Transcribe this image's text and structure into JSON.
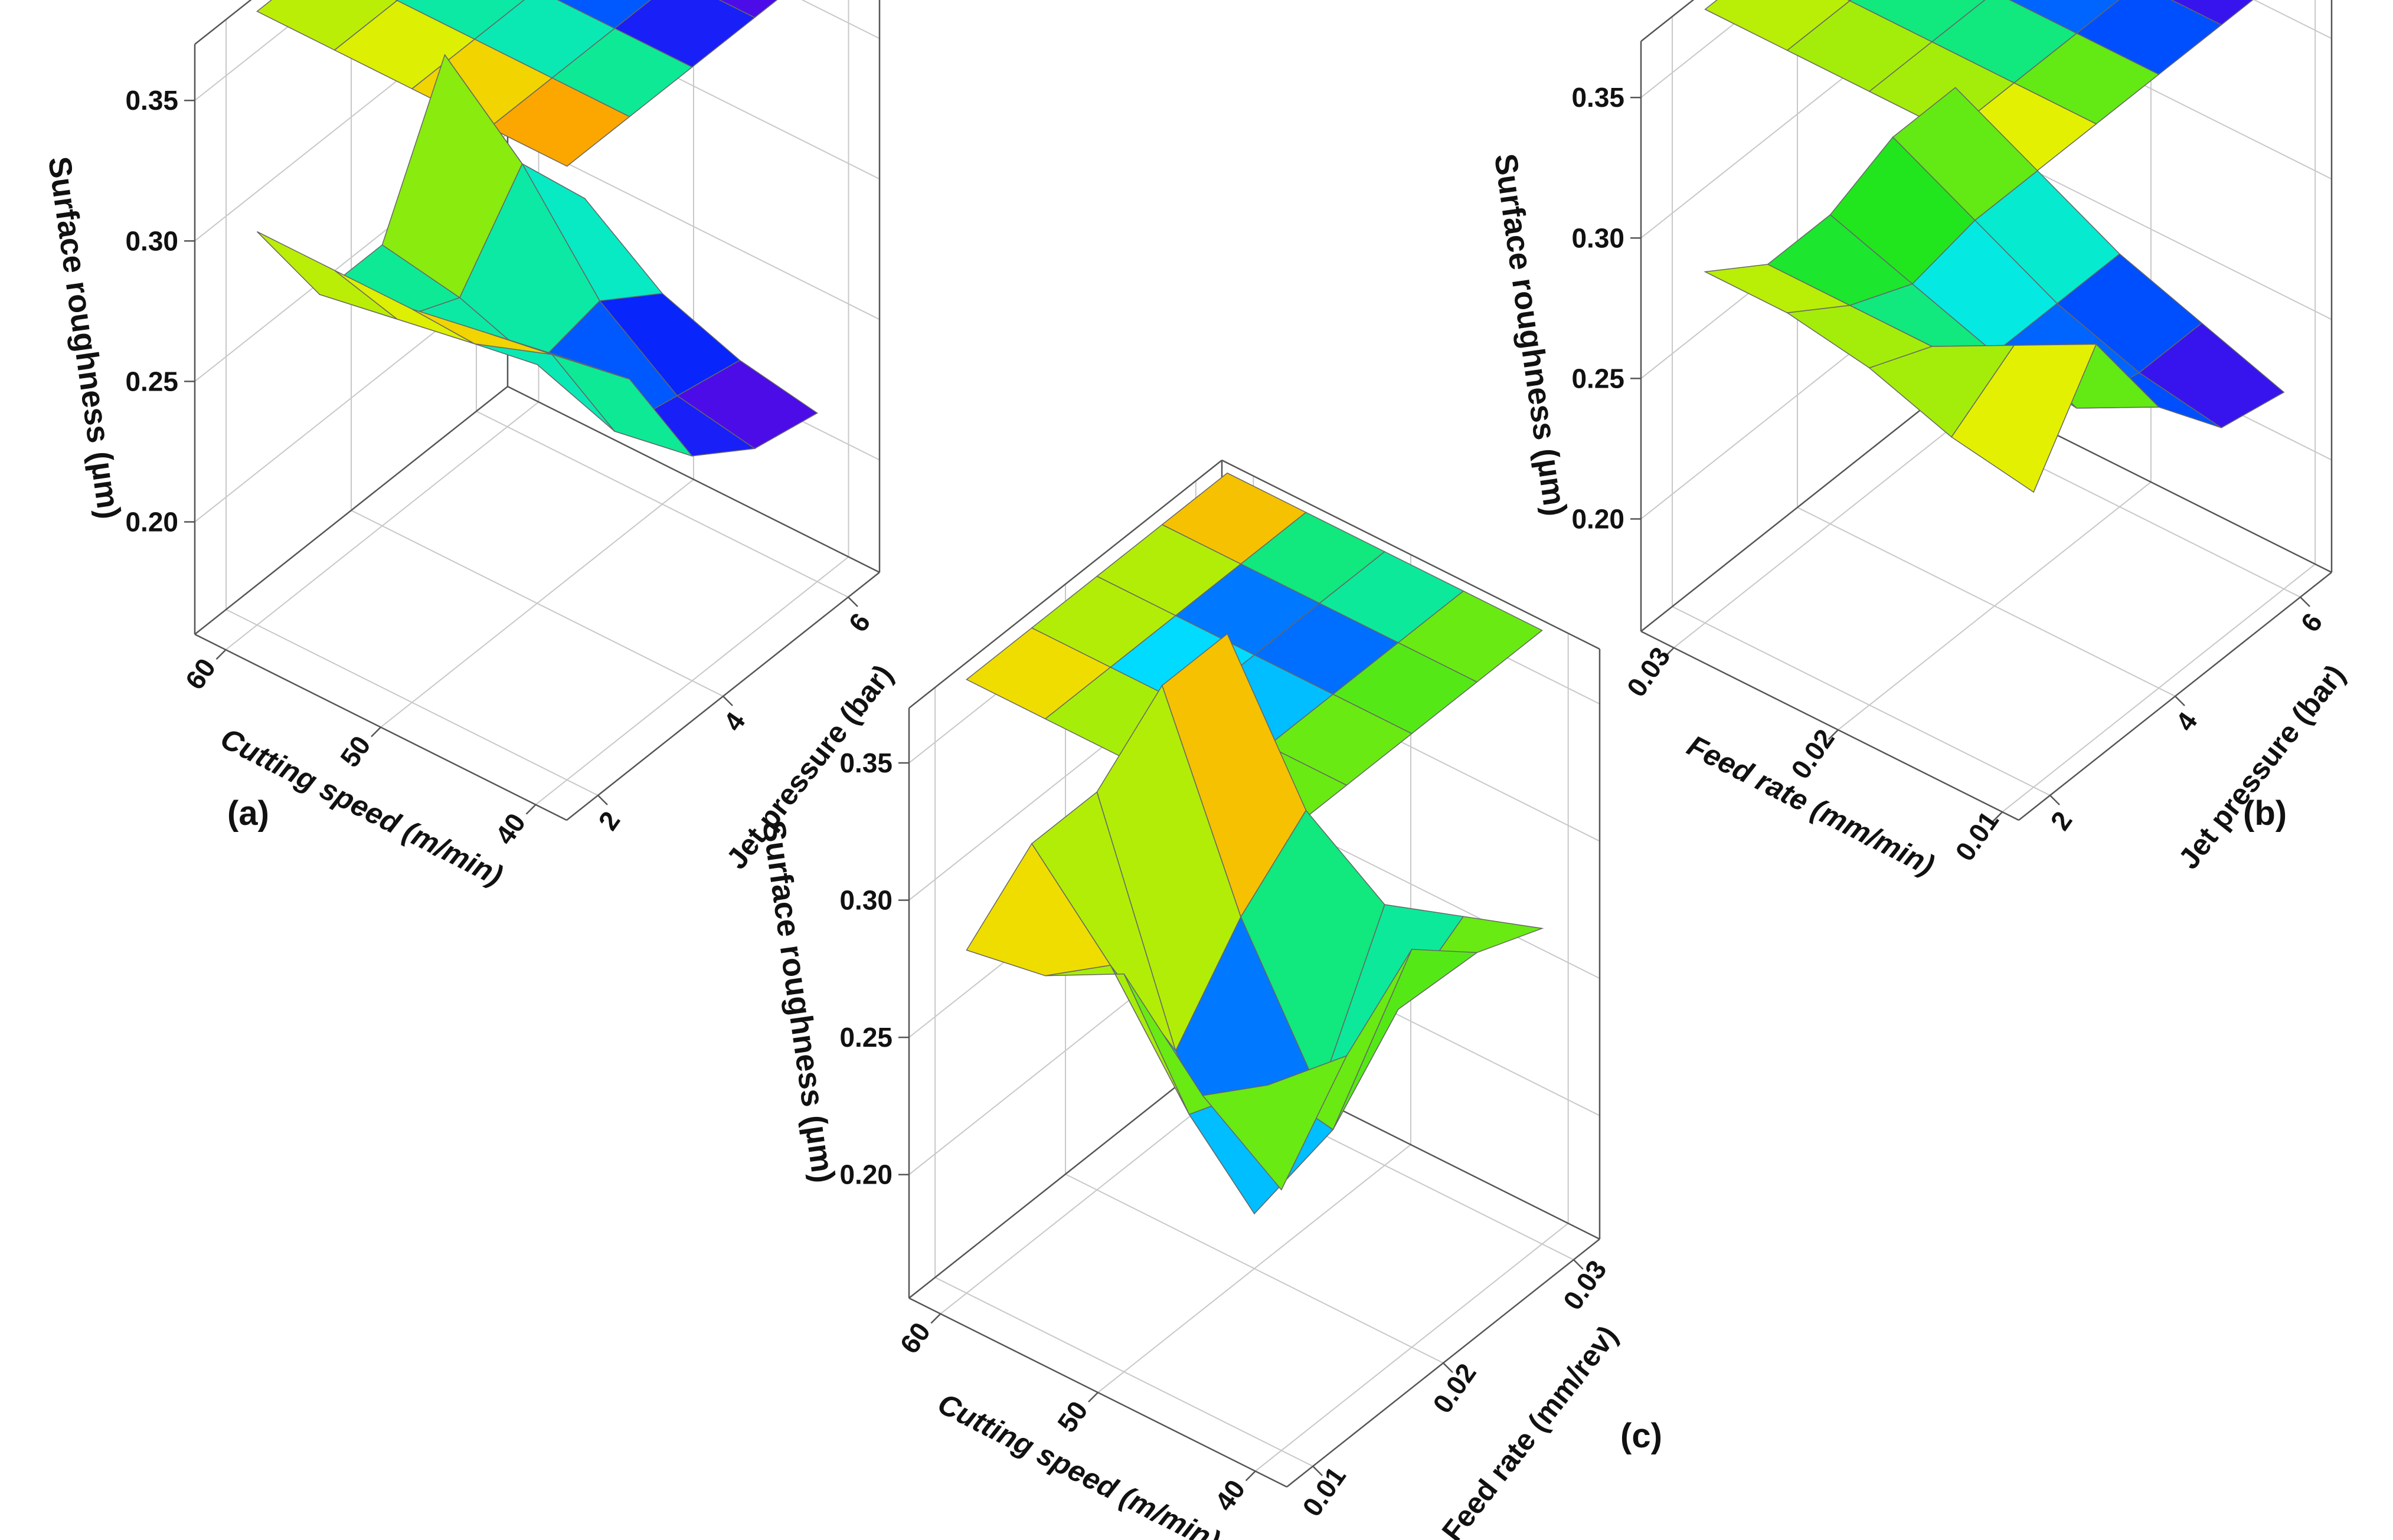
{
  "chart_data": [
    {
      "type": "surface3d",
      "panel_label": "(a)",
      "xlabel": "Cutting speed (m/min)",
      "ylabel": "Jet pressure (bar)",
      "zlabel": "Surface roughness (µm)",
      "x_ticks": [
        40,
        50,
        60
      ],
      "y_ticks": [
        2,
        4,
        6
      ],
      "z_ticks": [
        "0.20",
        "0.25",
        "0.30",
        "0.35"
      ],
      "xlim": [
        38,
        62
      ],
      "ylim": [
        1.5,
        6.5
      ],
      "zlim": [
        0.16,
        0.37
      ],
      "x": [
        40,
        45,
        50,
        55,
        60
      ],
      "y": [
        2,
        3,
        4,
        5,
        6
      ],
      "z": [
        [
          0.31,
          0.305,
          0.3,
          0.3,
          0.3
        ],
        [
          0.285,
          0.28,
          0.27,
          0.265,
          0.26
        ],
        [
          0.24,
          0.235,
          0.245,
          0.255,
          0.26
        ],
        [
          0.225,
          0.23,
          0.25,
          0.285,
          0.31
        ],
        [
          0.22,
          0.225,
          0.235,
          0.255,
          0.225
        ]
      ]
    },
    {
      "type": "surface3d",
      "panel_label": "(b)",
      "xlabel": "Feed rate (mm/min)",
      "ylabel": "Jet pressure (bar)",
      "zlabel": "Surface roughness (µm)",
      "x_ticks": [
        "0.01",
        "0.02",
        "0.03"
      ],
      "y_ticks": [
        2,
        4,
        6
      ],
      "z_ticks": [
        "0.20",
        "0.25",
        "0.30",
        "0.35"
      ],
      "xlim": [
        0.009,
        0.032
      ],
      "ylim": [
        1.5,
        6.5
      ],
      "zlim": [
        0.16,
        0.37
      ],
      "x": [
        0.01,
        0.015,
        0.02,
        0.025,
        0.03
      ],
      "y": [
        2,
        3,
        4,
        5,
        6
      ],
      "z": [
        [
          0.265,
          0.27,
          0.28,
          0.285,
          0.285
        ],
        [
          0.3,
          0.285,
          0.27,
          0.27,
          0.27
        ],
        [
          0.26,
          0.245,
          0.25,
          0.26,
          0.27
        ],
        [
          0.235,
          0.24,
          0.25,
          0.265,
          0.28
        ],
        [
          0.23,
          0.24,
          0.25,
          0.265,
          0.28
        ]
      ]
    },
    {
      "type": "surface3d",
      "panel_label": "(c)",
      "xlabel": "Cutting speed (m/min)",
      "ylabel": "Feed rate (mm/rev)",
      "zlabel": "Surface roughness (µm)",
      "x_ticks": [
        40,
        50,
        60
      ],
      "y_ticks": [
        "0.01",
        "0.02",
        "0.03"
      ],
      "z_ticks": [
        "0.20",
        "0.25",
        "0.30",
        "0.35"
      ],
      "xlim": [
        38,
        62
      ],
      "ylim": [
        0.008,
        0.032
      ],
      "zlim": [
        0.155,
        0.37
      ],
      "x": [
        40,
        45,
        50,
        55,
        60
      ],
      "y": [
        0.01,
        0.015,
        0.02,
        0.025,
        0.03
      ],
      "z": [
        [
          0.25,
          0.27,
          0.3,
          0.285,
          0.28
        ],
        [
          0.28,
          0.255,
          0.23,
          0.27,
          0.3
        ],
        [
          0.3,
          0.22,
          0.175,
          0.22,
          0.3
        ],
        [
          0.28,
          0.245,
          0.2,
          0.25,
          0.32
        ],
        [
          0.27,
          0.26,
          0.25,
          0.27,
          0.32
        ]
      ]
    }
  ]
}
